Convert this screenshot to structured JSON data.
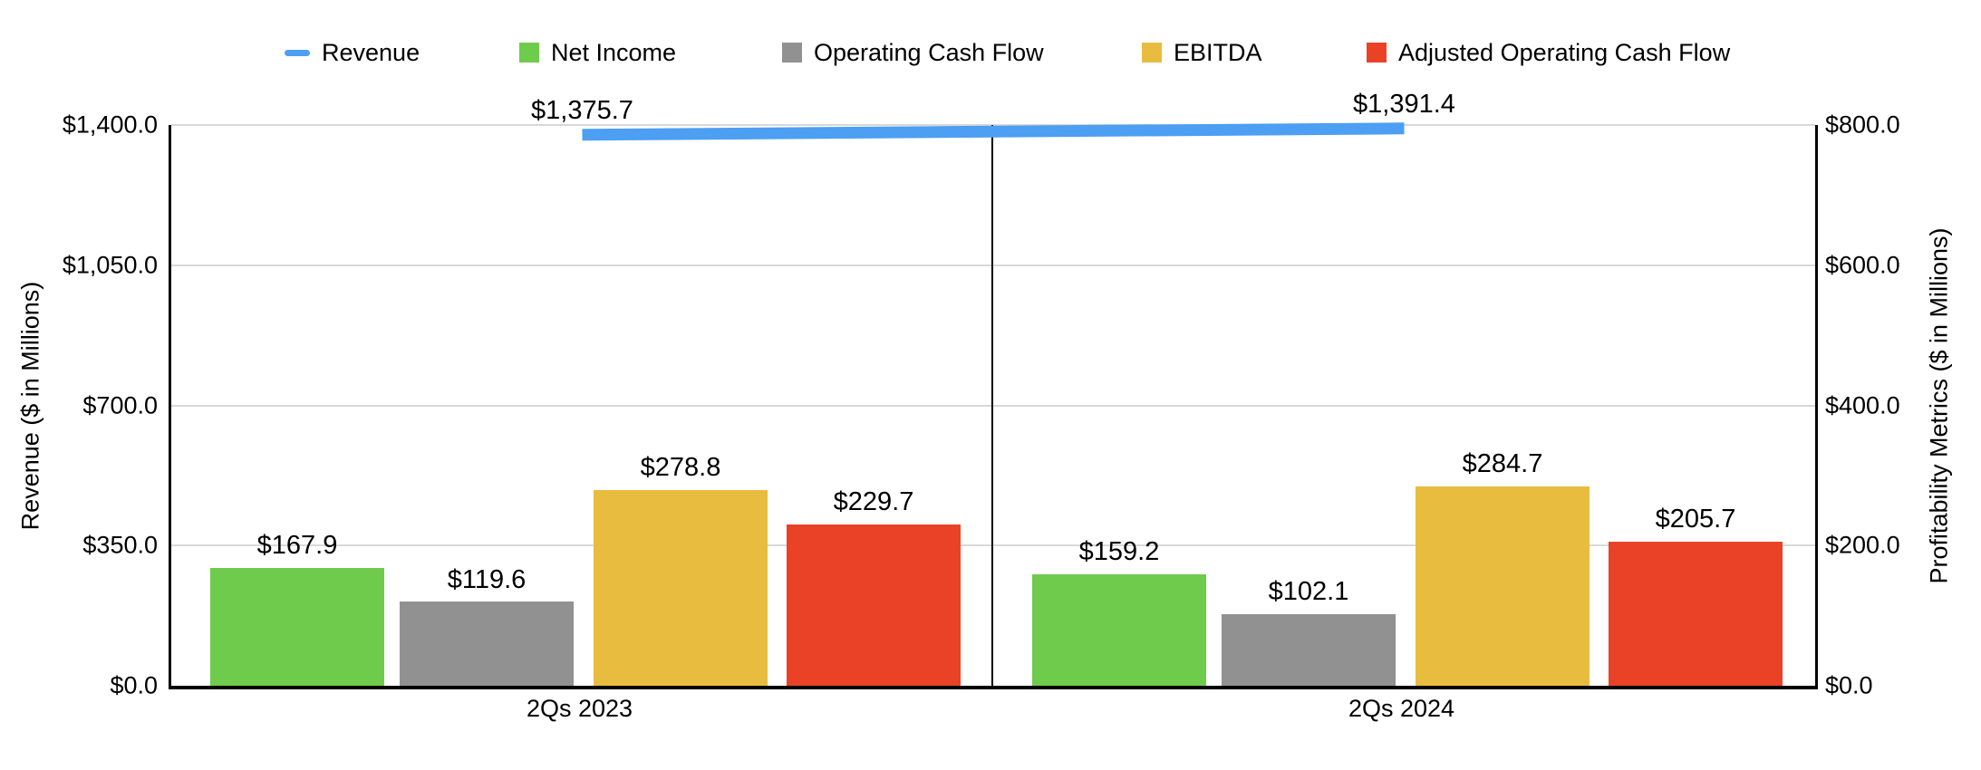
{
  "chart_data": {
    "type": "bar+line combo",
    "title": "",
    "categories": [
      "2Qs 2023",
      "2Qs 2024"
    ],
    "legend_position": "top",
    "grid": true,
    "left_axis": {
      "title": "Revenue ($ in Millions)",
      "range": [
        0,
        1400
      ],
      "ticks": [
        "$0.0",
        "$350.0",
        "$700.0",
        "$1,050.0",
        "$1,400.0"
      ]
    },
    "right_axis": {
      "title": "Profitability Metrics ($ in Millions)",
      "range": [
        0,
        800
      ],
      "ticks": [
        "$0.0",
        "$200.0",
        "$400.0",
        "$600.0",
        "$800.0"
      ]
    },
    "series": [
      {
        "name": "Revenue",
        "type": "line",
        "axis": "left",
        "color": "#4C9FF2",
        "values": [
          1375.7,
          1391.4
        ],
        "labels": [
          "$1,375.7",
          "$1,391.4"
        ]
      },
      {
        "name": "Net Income",
        "type": "bar",
        "axis": "right",
        "color": "#6FCB4B",
        "values": [
          167.9,
          159.2
        ],
        "labels": [
          "$167.9",
          "$159.2"
        ]
      },
      {
        "name": "Operating Cash Flow",
        "type": "bar",
        "axis": "right",
        "color": "#919191",
        "values": [
          119.6,
          102.1
        ],
        "labels": [
          "$119.6",
          "$102.1"
        ]
      },
      {
        "name": "EBITDA",
        "type": "bar",
        "axis": "right",
        "color": "#E8BC3E",
        "values": [
          278.8,
          284.7
        ],
        "labels": [
          "$278.8",
          "$284.7"
        ]
      },
      {
        "name": "Adjusted Operating Cash Flow",
        "type": "bar",
        "axis": "right",
        "color": "#E94226",
        "values": [
          229.7,
          205.7
        ],
        "labels": [
          "$229.7",
          "$205.7"
        ]
      }
    ],
    "colors": {
      "gridline": "#d8d8d8",
      "axis_line": "#000000",
      "text": "#000000"
    }
  }
}
